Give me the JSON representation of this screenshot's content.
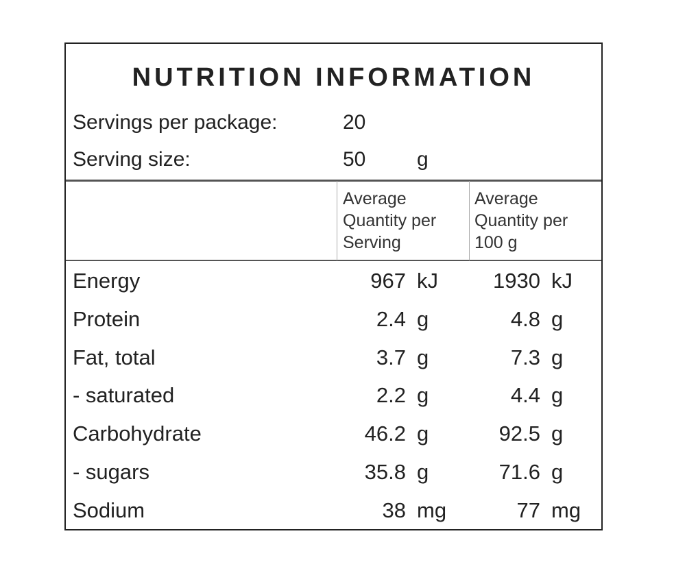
{
  "title": "NUTRITION INFORMATION",
  "servings": [
    {
      "label": "Servings per package:",
      "value": 20
    },
    {
      "label": "Serving size:",
      "value": 50,
      "unit": "g"
    }
  ],
  "table": {
    "headers": [
      [
        "Average",
        "Quantity per",
        "Serving"
      ],
      [
        "Average",
        "Quantity per",
        "100 g"
      ]
    ],
    "rows": [
      {
        "nutrient": "Energy",
        "per_serving": 967,
        "per_serving_unit": "kJ",
        "per_100g": 1930,
        "per_100g_unit": "kJ"
      },
      {
        "nutrient": "Protein",
        "per_serving": 2.4,
        "per_serving_unit": "g",
        "per_100g": 4.8,
        "per_100g_unit": "g"
      },
      {
        "nutrient": "Fat, total",
        "per_serving": 3.7,
        "per_serving_unit": "g",
        "per_100g": 7.3,
        "per_100g_unit": "g"
      },
      {
        "nutrient": "- saturated",
        "per_serving": 2.2,
        "per_serving_unit": "g",
        "per_100g": 4.4,
        "per_100g_unit": "g"
      },
      {
        "nutrient": "Carbohydrate",
        "per_serving": 46.2,
        "per_serving_unit": "g",
        "per_100g": 92.5,
        "per_100g_unit": "g"
      },
      {
        "nutrient": "- sugars",
        "per_serving": 35.8,
        "per_serving_unit": "g",
        "per_100g": 71.6,
        "per_100g_unit": "g"
      },
      {
        "nutrient": "Sodium",
        "per_serving": 38,
        "per_serving_unit": "mg",
        "per_100g": 77,
        "per_100g_unit": "mg"
      }
    ]
  }
}
